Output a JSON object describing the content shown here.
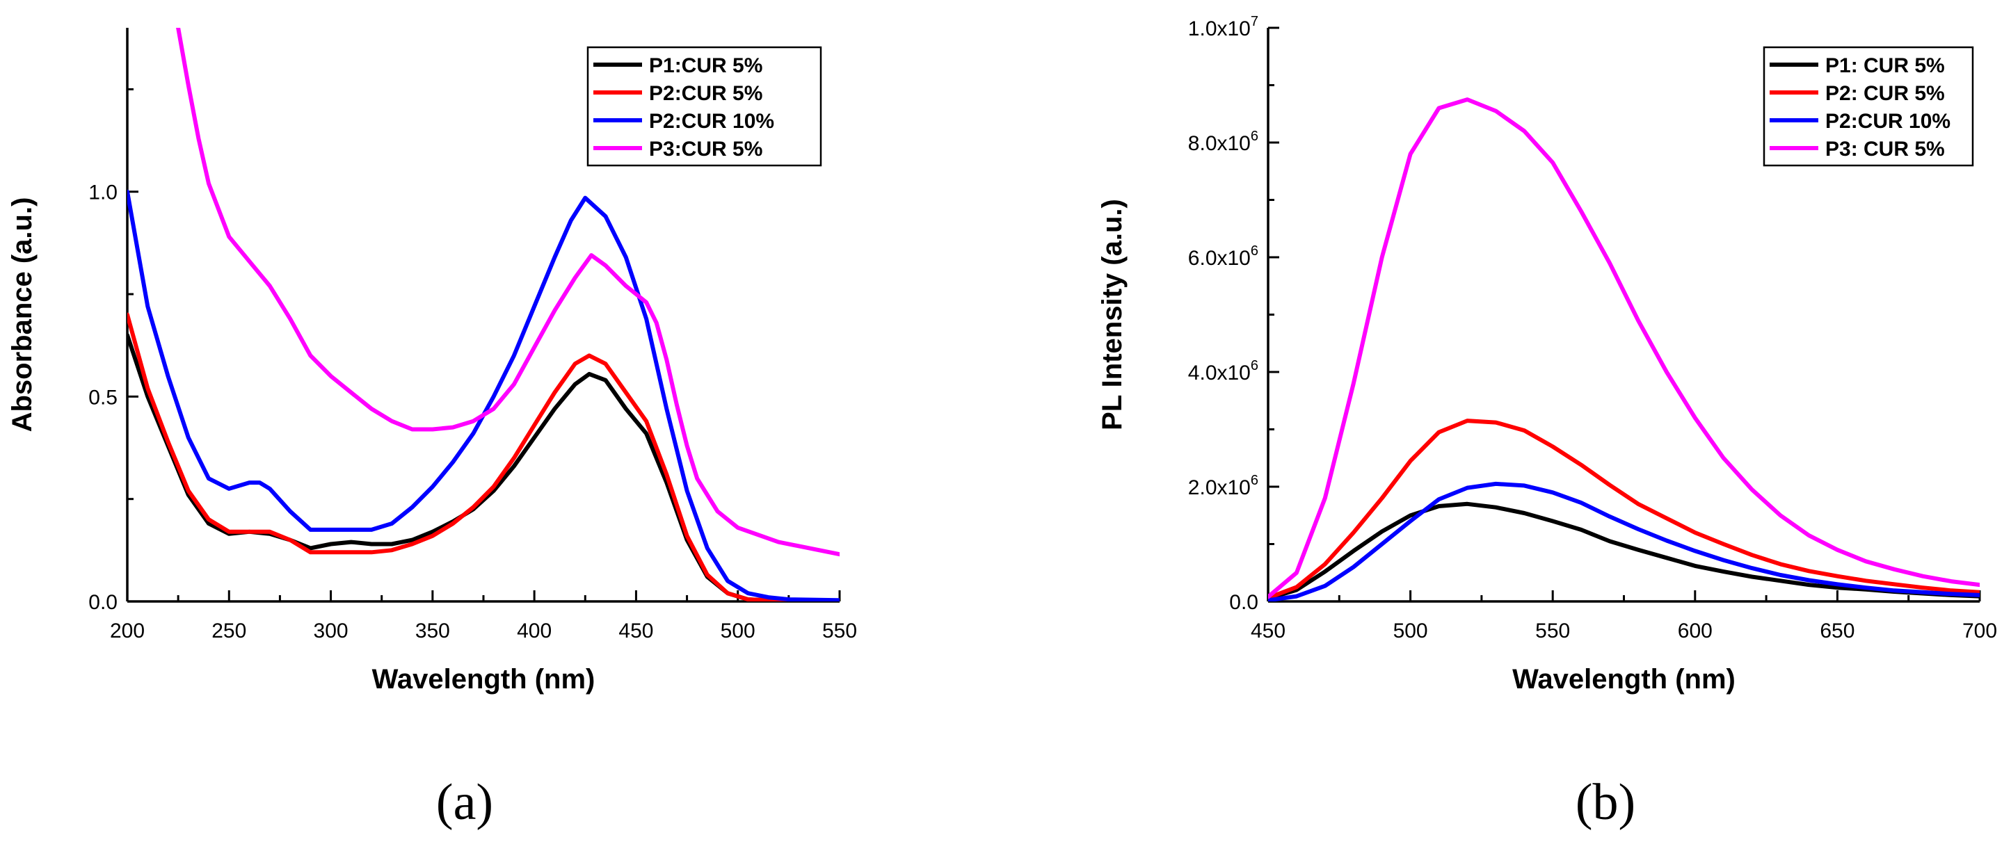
{
  "chart_data": [
    {
      "panel": "(a)",
      "type": "line",
      "xlabel": "Wavelength (nm)",
      "ylabel": "Absorbance (a.u.)",
      "xlim": [
        200,
        550
      ],
      "ylim": [
        0.0,
        1.4
      ],
      "xticks": [
        200,
        250,
        300,
        350,
        400,
        450,
        500,
        550
      ],
      "xtick_labels": [
        "200",
        "250",
        "300",
        "350",
        "400",
        "450",
        "500",
        "550"
      ],
      "yticks": [
        0.0,
        0.5,
        1.0
      ],
      "ytick_labels": [
        "0.0",
        "0.5",
        "1.0"
      ],
      "legend_position": "top-right",
      "series": [
        {
          "name": "P1:CUR 5%",
          "color": "#000000",
          "x": [
            200,
            210,
            220,
            230,
            240,
            250,
            260,
            270,
            280,
            290,
            300,
            310,
            320,
            330,
            340,
            350,
            360,
            370,
            380,
            390,
            400,
            410,
            420,
            427,
            435,
            445,
            455,
            465,
            475,
            485,
            495,
            505,
            515,
            525,
            550
          ],
          "y": [
            0.65,
            0.5,
            0.38,
            0.26,
            0.19,
            0.165,
            0.17,
            0.165,
            0.15,
            0.13,
            0.14,
            0.145,
            0.14,
            0.14,
            0.15,
            0.17,
            0.195,
            0.225,
            0.27,
            0.33,
            0.4,
            0.47,
            0.53,
            0.555,
            0.54,
            0.47,
            0.41,
            0.29,
            0.15,
            0.06,
            0.02,
            0.005,
            0.003,
            0.002,
            0.002
          ]
        },
        {
          "name": "P2:CUR 5%",
          "color": "#ff0000",
          "x": [
            200,
            210,
            220,
            230,
            240,
            250,
            260,
            270,
            280,
            290,
            300,
            310,
            320,
            330,
            340,
            350,
            360,
            370,
            380,
            390,
            400,
            410,
            420,
            427,
            435,
            445,
            455,
            465,
            475,
            485,
            495,
            505,
            515,
            525,
            550
          ],
          "y": [
            0.7,
            0.52,
            0.39,
            0.27,
            0.2,
            0.17,
            0.17,
            0.17,
            0.15,
            0.12,
            0.12,
            0.12,
            0.12,
            0.125,
            0.14,
            0.16,
            0.19,
            0.23,
            0.28,
            0.35,
            0.43,
            0.51,
            0.58,
            0.6,
            0.58,
            0.51,
            0.44,
            0.31,
            0.16,
            0.065,
            0.02,
            0.005,
            0.003,
            0.002,
            0.002
          ]
        },
        {
          "name": "P2:CUR 10%",
          "color": "#0000ff",
          "x": [
            200,
            210,
            220,
            230,
            240,
            250,
            260,
            265,
            270,
            280,
            290,
            300,
            310,
            320,
            330,
            340,
            350,
            360,
            370,
            380,
            390,
            400,
            410,
            418,
            425,
            435,
            445,
            455,
            465,
            475,
            485,
            495,
            505,
            515,
            525,
            550
          ],
          "y": [
            1.0,
            0.72,
            0.55,
            0.4,
            0.3,
            0.275,
            0.29,
            0.29,
            0.275,
            0.22,
            0.175,
            0.175,
            0.175,
            0.175,
            0.19,
            0.23,
            0.28,
            0.34,
            0.41,
            0.5,
            0.6,
            0.72,
            0.84,
            0.93,
            0.985,
            0.94,
            0.84,
            0.69,
            0.47,
            0.27,
            0.13,
            0.05,
            0.02,
            0.01,
            0.005,
            0.003
          ]
        },
        {
          "name": "P3:CUR 5%",
          "color": "#ff00ff",
          "x": [
            225,
            230,
            235,
            240,
            250,
            260,
            270,
            280,
            290,
            300,
            310,
            320,
            330,
            340,
            350,
            360,
            370,
            380,
            390,
            400,
            410,
            420,
            428,
            435,
            445,
            455,
            460,
            465,
            470,
            475,
            480,
            490,
            500,
            520,
            550
          ],
          "y": [
            1.4,
            1.26,
            1.13,
            1.02,
            0.89,
            0.83,
            0.77,
            0.69,
            0.6,
            0.55,
            0.51,
            0.47,
            0.44,
            0.42,
            0.42,
            0.425,
            0.44,
            0.47,
            0.53,
            0.62,
            0.71,
            0.79,
            0.845,
            0.82,
            0.77,
            0.73,
            0.68,
            0.59,
            0.48,
            0.38,
            0.3,
            0.22,
            0.18,
            0.145,
            0.115
          ]
        }
      ]
    },
    {
      "panel": "(b)",
      "type": "line",
      "xlabel": "Wavelength (nm)",
      "ylabel": "PL Intensity (a.u.)",
      "xlim": [
        450,
        700
      ],
      "ylim": [
        0,
        10000000
      ],
      "xticks": [
        450,
        500,
        550,
        600,
        650,
        700
      ],
      "xtick_labels": [
        "450",
        "500",
        "550",
        "600",
        "650",
        "700"
      ],
      "yticks": [
        0,
        2000000,
        4000000,
        6000000,
        8000000,
        10000000
      ],
      "ytick_labels": [
        {
          "base": "0.0",
          "exp": ""
        },
        {
          "base": "2.0x10",
          "exp": "6"
        },
        {
          "base": "4.0x10",
          "exp": "6"
        },
        {
          "base": "6.0x10",
          "exp": "6"
        },
        {
          "base": "8.0x10",
          "exp": "6"
        },
        {
          "base": "1.0x10",
          "exp": "7"
        }
      ],
      "legend_position": "top-right",
      "series": [
        {
          "name": "P1: CUR 5%",
          "color": "#000000",
          "x": [
            450,
            460,
            470,
            480,
            490,
            500,
            510,
            520,
            530,
            540,
            550,
            560,
            570,
            580,
            590,
            600,
            610,
            620,
            630,
            640,
            650,
            660,
            670,
            680,
            690,
            700
          ],
          "y": [
            50000,
            200000,
            520000,
            880000,
            1220000,
            1500000,
            1660000,
            1700000,
            1640000,
            1540000,
            1400000,
            1250000,
            1050000,
            900000,
            760000,
            620000,
            520000,
            430000,
            360000,
            290000,
            240000,
            210000,
            170000,
            140000,
            110000,
            90000
          ]
        },
        {
          "name": "P2: CUR 5%",
          "color": "#ff0000",
          "x": [
            450,
            460,
            470,
            480,
            490,
            500,
            510,
            520,
            530,
            540,
            550,
            560,
            570,
            580,
            590,
            600,
            610,
            620,
            630,
            640,
            650,
            660,
            670,
            680,
            690,
            700
          ],
          "y": [
            60000,
            250000,
            650000,
            1200000,
            1800000,
            2450000,
            2950000,
            3150000,
            3120000,
            2980000,
            2700000,
            2380000,
            2030000,
            1700000,
            1450000,
            1200000,
            1000000,
            810000,
            650000,
            530000,
            440000,
            360000,
            300000,
            240000,
            190000,
            160000
          ]
        },
        {
          "name": "P2:CUR 10%",
          "color": "#0000ff",
          "x": [
            450,
            460,
            470,
            480,
            490,
            500,
            510,
            520,
            530,
            540,
            550,
            560,
            570,
            580,
            590,
            600,
            610,
            620,
            630,
            640,
            650,
            660,
            670,
            680,
            690,
            700
          ],
          "y": [
            20000,
            90000,
            270000,
            600000,
            1000000,
            1400000,
            1780000,
            1980000,
            2050000,
            2020000,
            1900000,
            1720000,
            1480000,
            1260000,
            1060000,
            880000,
            720000,
            580000,
            460000,
            370000,
            300000,
            240000,
            190000,
            160000,
            130000,
            110000
          ]
        },
        {
          "name": "P3: CUR 5%",
          "color": "#ff00ff",
          "x": [
            450,
            460,
            470,
            480,
            490,
            500,
            510,
            520,
            530,
            540,
            550,
            560,
            570,
            580,
            590,
            600,
            610,
            620,
            630,
            640,
            650,
            660,
            670,
            680,
            690,
            700
          ],
          "y": [
            80000,
            500000,
            1800000,
            3800000,
            6000000,
            7800000,
            8600000,
            8750000,
            8550000,
            8200000,
            7650000,
            6800000,
            5900000,
            4900000,
            4000000,
            3200000,
            2500000,
            1950000,
            1500000,
            1150000,
            900000,
            700000,
            560000,
            440000,
            350000,
            290000
          ]
        }
      ]
    }
  ]
}
